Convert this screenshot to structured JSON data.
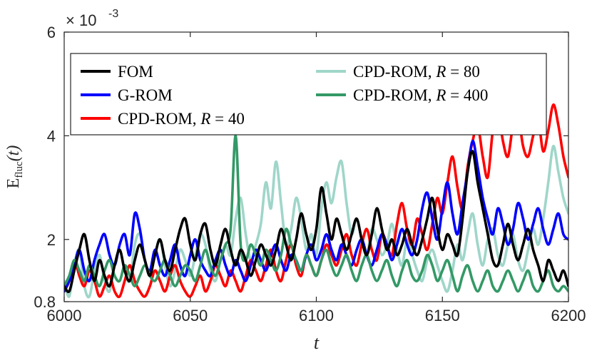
{
  "chart_data": {
    "type": "line",
    "xlabel": "t",
    "ylabel_main": "E",
    "ylabel_sub": "fluc",
    "ylabel_arg": "(t)",
    "exponent_label": "× 10",
    "exponent_power": "-3",
    "xlim": [
      6000,
      6200
    ],
    "ylim": [
      0.0008,
      0.006
    ],
    "xticks": [
      6000,
      6050,
      6100,
      6150,
      6200
    ],
    "xtick_labels": [
      "6000",
      "6050",
      "6100",
      "6150",
      "6200"
    ],
    "yticks": [
      0.0008,
      0.002,
      0.004,
      0.006
    ],
    "ytick_labels": [
      "0.8",
      "2",
      "4",
      "6"
    ],
    "grid": false,
    "legend_position": "top",
    "series": [
      {
        "name": "CPD-ROM, R = 80",
        "legend_text": "CPD-ROM, ",
        "legend_r": "R",
        "legend_value": " = 80",
        "color": "#9fd6c9",
        "x": [
          6000,
          6002,
          6004,
          6006,
          6008,
          6010,
          6012,
          6014,
          6016,
          6018,
          6020,
          6022,
          6024,
          6026,
          6028,
          6030,
          6032,
          6034,
          6036,
          6038,
          6040,
          6042,
          6044,
          6046,
          6048,
          6050,
          6052,
          6054,
          6056,
          6058,
          6060,
          6062,
          6064,
          6066,
          6068,
          6070,
          6072,
          6074,
          6076,
          6078,
          6080,
          6082,
          6084,
          6086,
          6088,
          6090,
          6092,
          6094,
          6096,
          6098,
          6100,
          6102,
          6104,
          6106,
          6108,
          6110,
          6112,
          6114,
          6116,
          6118,
          6120,
          6122,
          6124,
          6126,
          6128,
          6130,
          6132,
          6134,
          6136,
          6138,
          6140,
          6142,
          6144,
          6146,
          6148,
          6150,
          6152,
          6154,
          6156,
          6158,
          6160,
          6162,
          6164,
          6166,
          6168,
          6170,
          6172,
          6174,
          6176,
          6178,
          6180,
          6182,
          6184,
          6186,
          6188,
          6190,
          6192,
          6194,
          6196,
          6198,
          6200
        ],
        "y": [
          0.0012,
          0.0009,
          0.0015,
          0.0018,
          0.0011,
          0.0009,
          0.0014,
          0.0017,
          0.0012,
          0.001,
          0.0015,
          0.0018,
          0.0014,
          0.0012,
          0.0019,
          0.0021,
          0.0016,
          0.0013,
          0.0017,
          0.002,
          0.0015,
          0.0011,
          0.0014,
          0.0018,
          0.0016,
          0.0013,
          0.0017,
          0.0021,
          0.0019,
          0.0014,
          0.0012,
          0.0016,
          0.0019,
          0.0017,
          0.0024,
          0.0028,
          0.0021,
          0.0016,
          0.0019,
          0.0023,
          0.0031,
          0.0026,
          0.0035,
          0.0027,
          0.0019,
          0.0022,
          0.0028,
          0.0024,
          0.0018,
          0.0021,
          0.0017,
          0.0026,
          0.0031,
          0.0027,
          0.0032,
          0.0035,
          0.0027,
          0.0021,
          0.0024,
          0.002,
          0.0017,
          0.0022,
          0.002,
          0.0017,
          0.0019,
          0.0023,
          0.0018,
          0.0015,
          0.002,
          0.0017,
          0.0014,
          0.0012,
          0.0016,
          0.0018,
          0.0015,
          0.0012,
          0.001,
          0.0014,
          0.0019,
          0.0016,
          0.0021,
          0.0025,
          0.0019,
          0.0015,
          0.002,
          0.0022,
          0.0017,
          0.0015,
          0.0019,
          0.0021,
          0.0016,
          0.0014,
          0.0018,
          0.0022,
          0.0019,
          0.0024,
          0.0031,
          0.0038,
          0.0033,
          0.0028,
          0.0025
        ]
      },
      {
        "name": "CPD-ROM, R = 40",
        "legend_text": "CPD-ROM, ",
        "legend_r": "R",
        "legend_value": " = 40",
        "color": "#ff0000",
        "x": [
          6000,
          6002,
          6004,
          6006,
          6008,
          6010,
          6012,
          6014,
          6016,
          6018,
          6020,
          6022,
          6024,
          6026,
          6028,
          6030,
          6032,
          6034,
          6036,
          6038,
          6040,
          6042,
          6044,
          6046,
          6048,
          6050,
          6052,
          6054,
          6056,
          6058,
          6060,
          6062,
          6064,
          6066,
          6068,
          6070,
          6072,
          6074,
          6076,
          6078,
          6080,
          6082,
          6084,
          6086,
          6088,
          6090,
          6092,
          6094,
          6096,
          6098,
          6100,
          6102,
          6104,
          6106,
          6108,
          6110,
          6112,
          6114,
          6116,
          6118,
          6120,
          6122,
          6124,
          6126,
          6128,
          6130,
          6132,
          6134,
          6136,
          6138,
          6140,
          6142,
          6144,
          6146,
          6148,
          6150,
          6152,
          6154,
          6156,
          6158,
          6160,
          6162,
          6164,
          6166,
          6168,
          6170,
          6172,
          6174,
          6176,
          6178,
          6180,
          6182,
          6184,
          6186,
          6188,
          6190,
          6192,
          6194,
          6196,
          6198,
          6200
        ],
        "y": [
          0.001,
          0.0012,
          0.0016,
          0.0013,
          0.0011,
          0.0014,
          0.0012,
          0.0009,
          0.0011,
          0.0013,
          0.001,
          0.0009,
          0.0012,
          0.0015,
          0.0012,
          0.001,
          0.0009,
          0.0011,
          0.0014,
          0.0012,
          0.001,
          0.0013,
          0.0015,
          0.0012,
          0.001,
          0.0009,
          0.0011,
          0.0013,
          0.001,
          0.0012,
          0.0015,
          0.0013,
          0.0011,
          0.0014,
          0.0012,
          0.001,
          0.0013,
          0.0016,
          0.0014,
          0.0012,
          0.0015,
          0.0018,
          0.0014,
          0.0012,
          0.0016,
          0.0019,
          0.0015,
          0.0013,
          0.0017,
          0.0015,
          0.0013,
          0.0016,
          0.0019,
          0.0017,
          0.0015,
          0.0018,
          0.0021,
          0.0017,
          0.0015,
          0.0019,
          0.0022,
          0.0018,
          0.0016,
          0.0021,
          0.0019,
          0.0017,
          0.0023,
          0.0027,
          0.0022,
          0.0019,
          0.0024,
          0.0021,
          0.0018,
          0.0023,
          0.0028,
          0.0025,
          0.0031,
          0.0036,
          0.003,
          0.0026,
          0.0034,
          0.0039,
          0.0042,
          0.0036,
          0.0032,
          0.0041,
          0.0045,
          0.0039,
          0.0036,
          0.0042,
          0.0044,
          0.0038,
          0.0036,
          0.004,
          0.0043,
          0.0037,
          0.0041,
          0.0046,
          0.0042,
          0.0036,
          0.0032
        ]
      },
      {
        "name": "G-ROM",
        "legend_text": "G-ROM",
        "legend_r": "",
        "legend_value": "",
        "color": "#0000ff",
        "x": [
          6000,
          6002,
          6004,
          6006,
          6008,
          6010,
          6012,
          6014,
          6016,
          6018,
          6020,
          6022,
          6024,
          6026,
          6028,
          6030,
          6032,
          6034,
          6036,
          6038,
          6040,
          6042,
          6044,
          6046,
          6048,
          6050,
          6052,
          6054,
          6056,
          6058,
          6060,
          6062,
          6064,
          6066,
          6068,
          6070,
          6072,
          6074,
          6076,
          6078,
          6080,
          6082,
          6084,
          6086,
          6088,
          6090,
          6092,
          6094,
          6096,
          6098,
          6100,
          6102,
          6104,
          6106,
          6108,
          6110,
          6112,
          6114,
          6116,
          6118,
          6120,
          6122,
          6124,
          6126,
          6128,
          6130,
          6132,
          6134,
          6136,
          6138,
          6140,
          6142,
          6144,
          6146,
          6148,
          6150,
          6152,
          6154,
          6156,
          6158,
          6160,
          6162,
          6164,
          6166,
          6168,
          6170,
          6172,
          6174,
          6176,
          6178,
          6180,
          6182,
          6184,
          6186,
          6188,
          6190,
          6192,
          6194,
          6196,
          6198,
          6200
        ],
        "y": [
          0.001,
          0.0012,
          0.0015,
          0.0018,
          0.0014,
          0.0012,
          0.0016,
          0.0019,
          0.0021,
          0.0017,
          0.0015,
          0.0019,
          0.0021,
          0.0017,
          0.0025,
          0.0022,
          0.0016,
          0.0014,
          0.0018,
          0.0015,
          0.0013,
          0.0016,
          0.0019,
          0.0015,
          0.0013,
          0.0017,
          0.002,
          0.0016,
          0.0014,
          0.0013,
          0.0016,
          0.0018,
          0.0015,
          0.0013,
          0.0016,
          0.0014,
          0.0012,
          0.0015,
          0.0018,
          0.0016,
          0.0014,
          0.0017,
          0.0019,
          0.0016,
          0.0014,
          0.0017,
          0.0016,
          0.0014,
          0.0017,
          0.0019,
          0.0016,
          0.0018,
          0.0021,
          0.0018,
          0.0016,
          0.0019,
          0.0017,
          0.0015,
          0.0018,
          0.002,
          0.0017,
          0.0015,
          0.0018,
          0.0021,
          0.0019,
          0.0016,
          0.0019,
          0.0022,
          0.0019,
          0.0017,
          0.002,
          0.0026,
          0.0029,
          0.0024,
          0.002,
          0.0026,
          0.0031,
          0.0025,
          0.0021,
          0.0027,
          0.0033,
          0.0039,
          0.0034,
          0.0028,
          0.0024,
          0.0021,
          0.0026,
          0.0023,
          0.0019,
          0.0022,
          0.0027,
          0.0024,
          0.002,
          0.0023,
          0.0026,
          0.0022,
          0.0019,
          0.0022,
          0.0025,
          0.0021,
          0.002
        ]
      },
      {
        "name": "CPD-ROM, R = 400",
        "legend_text": "CPD-ROM, ",
        "legend_r": "R",
        "legend_value": " = 400",
        "color": "#339966",
        "x": [
          6000,
          6002,
          6004,
          6006,
          6008,
          6010,
          6012,
          6014,
          6016,
          6018,
          6020,
          6022,
          6024,
          6026,
          6028,
          6030,
          6032,
          6034,
          6036,
          6038,
          6040,
          6042,
          6044,
          6046,
          6048,
          6050,
          6052,
          6054,
          6056,
          6058,
          6060,
          6062,
          6064,
          6066,
          6068,
          6070,
          6072,
          6074,
          6076,
          6078,
          6080,
          6082,
          6084,
          6086,
          6088,
          6090,
          6092,
          6094,
          6096,
          6098,
          6100,
          6102,
          6104,
          6106,
          6108,
          6110,
          6112,
          6114,
          6116,
          6118,
          6120,
          6122,
          6124,
          6126,
          6128,
          6130,
          6132,
          6134,
          6136,
          6138,
          6140,
          6142,
          6144,
          6146,
          6148,
          6150,
          6152,
          6154,
          6156,
          6158,
          6160,
          6162,
          6164,
          6166,
          6168,
          6170,
          6172,
          6174,
          6176,
          6178,
          6180,
          6182,
          6184,
          6186,
          6188,
          6190,
          6192,
          6194,
          6196,
          6198,
          6200
        ],
        "y": [
          0.0011,
          0.0013,
          0.0016,
          0.0014,
          0.0012,
          0.0015,
          0.0013,
          0.0011,
          0.0014,
          0.0016,
          0.0013,
          0.0012,
          0.0015,
          0.0013,
          0.0011,
          0.0013,
          0.0015,
          0.0013,
          0.0012,
          0.0014,
          0.0016,
          0.0013,
          0.0011,
          0.0013,
          0.0015,
          0.0014,
          0.0012,
          0.0015,
          0.0018,
          0.0015,
          0.0013,
          0.0016,
          0.0019,
          0.0022,
          0.004,
          0.0019,
          0.0016,
          0.0019,
          0.0017,
          0.0015,
          0.0018,
          0.0016,
          0.0014,
          0.0017,
          0.0022,
          0.0019,
          0.0016,
          0.0014,
          0.0017,
          0.0015,
          0.0013,
          0.0016,
          0.0018,
          0.0015,
          0.0013,
          0.0015,
          0.0017,
          0.0014,
          0.0012,
          0.0015,
          0.0017,
          0.0014,
          0.0012,
          0.0014,
          0.0016,
          0.0013,
          0.0011,
          0.0014,
          0.0016,
          0.0013,
          0.0012,
          0.0014,
          0.0017,
          0.0015,
          0.0012,
          0.0014,
          0.0016,
          0.0013,
          0.001,
          0.0013,
          0.0015,
          0.0012,
          0.001,
          0.0012,
          0.0014,
          0.0011,
          0.001,
          0.0012,
          0.0014,
          0.0012,
          0.001,
          0.0012,
          0.0014,
          0.0011,
          0.001,
          0.0012,
          0.0014,
          0.0011,
          0.001,
          0.0011,
          0.001
        ]
      },
      {
        "name": "FOM",
        "legend_text": "FOM",
        "legend_r": "",
        "legend_value": "",
        "color": "#000000",
        "x": [
          6000,
          6002,
          6004,
          6006,
          6008,
          6010,
          6012,
          6014,
          6016,
          6018,
          6020,
          6022,
          6024,
          6026,
          6028,
          6030,
          6032,
          6034,
          6036,
          6038,
          6040,
          6042,
          6044,
          6046,
          6048,
          6050,
          6052,
          6054,
          6056,
          6058,
          6060,
          6062,
          6064,
          6066,
          6068,
          6070,
          6072,
          6074,
          6076,
          6078,
          6080,
          6082,
          6084,
          6086,
          6088,
          6090,
          6092,
          6094,
          6096,
          6098,
          6100,
          6102,
          6104,
          6106,
          6108,
          6110,
          6112,
          6114,
          6116,
          6118,
          6120,
          6122,
          6124,
          6126,
          6128,
          6130,
          6132,
          6134,
          6136,
          6138,
          6140,
          6142,
          6144,
          6146,
          6148,
          6150,
          6152,
          6154,
          6156,
          6158,
          6160,
          6162,
          6164,
          6166,
          6168,
          6170,
          6172,
          6174,
          6176,
          6178,
          6180,
          6182,
          6184,
          6186,
          6188,
          6190,
          6192,
          6194,
          6196,
          6198,
          6200
        ],
        "y": [
          0.0011,
          0.001,
          0.0014,
          0.0018,
          0.0021,
          0.0016,
          0.0012,
          0.0016,
          0.0013,
          0.0011,
          0.0015,
          0.0018,
          0.0014,
          0.0012,
          0.0016,
          0.0019,
          0.0016,
          0.0013,
          0.0017,
          0.002,
          0.0016,
          0.0014,
          0.0018,
          0.0022,
          0.0024,
          0.0019,
          0.0016,
          0.0021,
          0.0023,
          0.0018,
          0.0015,
          0.0019,
          0.0022,
          0.0018,
          0.0015,
          0.0018,
          0.0016,
          0.0013,
          0.0016,
          0.0019,
          0.0017,
          0.0015,
          0.0018,
          0.0022,
          0.0019,
          0.0016,
          0.002,
          0.0025,
          0.0021,
          0.0018,
          0.0022,
          0.003,
          0.0025,
          0.002,
          0.0024,
          0.0021,
          0.0018,
          0.0021,
          0.0024,
          0.002,
          0.0017,
          0.0021,
          0.0026,
          0.0022,
          0.0018,
          0.002,
          0.0017,
          0.0019,
          0.0022,
          0.0019,
          0.0017,
          0.002,
          0.0024,
          0.0028,
          0.0022,
          0.0018,
          0.0021,
          0.0019,
          0.0017,
          0.0024,
          0.0033,
          0.0037,
          0.0031,
          0.0026,
          0.0021,
          0.0016,
          0.0015,
          0.0019,
          0.0023,
          0.0019,
          0.0016,
          0.0019,
          0.0022,
          0.0018,
          0.0015,
          0.0012,
          0.0016,
          0.0014,
          0.0012,
          0.0014,
          0.0011
        ]
      }
    ],
    "legend_left": [
      "FOM",
      "G-ROM",
      "CPD-ROM, R = 40"
    ],
    "legend_right": [
      "CPD-ROM, R = 80",
      "CPD-ROM, R = 400"
    ]
  }
}
